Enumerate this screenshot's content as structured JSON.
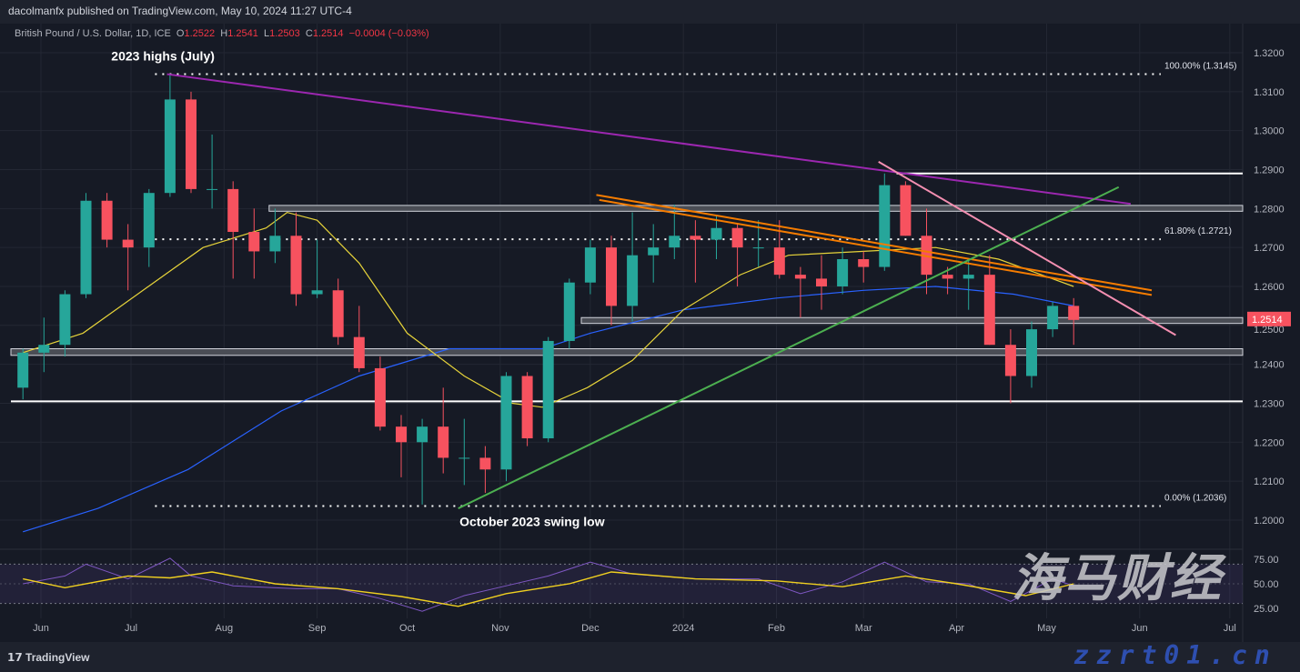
{
  "header": {
    "publisher": "dacolmanfx published on TradingView.com, May 10, 2024 11:27 UTC-4"
  },
  "legend": {
    "symbol": "British Pound / U.S. Dollar, 1D, ICE",
    "o_label": "O",
    "o": "1.2522",
    "h_label": "H",
    "h": "1.2541",
    "l_label": "L",
    "l": "1.2503",
    "c_label": "C",
    "c": "1.2514",
    "change": "−0.0004 (−0.03%)"
  },
  "footer": {
    "logo": "TradingView"
  },
  "watermark": {
    "cn": "海马财经",
    "url": "zzrt01.cn"
  },
  "colors": {
    "up": "#26a69a",
    "down": "#f7525f",
    "ma50": "#e6d33a",
    "ma200": "#2962ff",
    "trend_purple": "#9c27b0",
    "trend_orange": "#f57c00",
    "trend_green": "#4caf50",
    "trend_pink": "#f48fb1",
    "rsi": "#7e57c2",
    "rsi_ma": "#f0d020",
    "price_tag": "#f7525f"
  },
  "chart_data": {
    "type": "candlestick",
    "title": "British Pound / U.S. Dollar, 1D, ICE",
    "ylim": [
      1.195,
      1.325
    ],
    "y_ticks": [
      "1.3200",
      "1.3100",
      "1.3000",
      "1.2900",
      "1.2800",
      "1.2700",
      "1.2600",
      "1.2500",
      "1.2400",
      "1.2300",
      "1.2200",
      "1.2100",
      "1.2000"
    ],
    "x_ticks": [
      [
        "Jun",
        "2023-06-01"
      ],
      [
        "Jul",
        "2023-07-01"
      ],
      [
        "Aug",
        "2023-08-01"
      ],
      [
        "Sep",
        "2023-09-01"
      ],
      [
        "Oct",
        "2023-10-01"
      ],
      [
        "Nov",
        "2023-11-01"
      ],
      [
        "Dec",
        "2023-12-01"
      ],
      [
        "2024",
        "2024-01-01"
      ],
      [
        "Feb",
        "2024-02-01"
      ],
      [
        "Mar",
        "2024-03-01"
      ],
      [
        "Apr",
        "2024-04-01"
      ],
      [
        "May",
        "2024-05-01"
      ],
      [
        "Jun",
        "2024-06-01"
      ],
      [
        "Jul",
        "2024-07-01"
      ]
    ],
    "last_price": "1.2514",
    "candles": [
      [
        "2023-05-26",
        1.234,
        1.244,
        1.231,
        1.243
      ],
      [
        "2023-06-02",
        1.243,
        1.252,
        1.238,
        1.245
      ],
      [
        "2023-06-09",
        1.245,
        1.259,
        1.242,
        1.258
      ],
      [
        "2023-06-16",
        1.258,
        1.284,
        1.257,
        1.282
      ],
      [
        "2023-06-23",
        1.282,
        1.284,
        1.27,
        1.272
      ],
      [
        "2023-06-30",
        1.272,
        1.276,
        1.259,
        1.27
      ],
      [
        "2023-07-07",
        1.27,
        1.285,
        1.265,
        1.284
      ],
      [
        "2023-07-14",
        1.284,
        1.3145,
        1.283,
        1.308
      ],
      [
        "2023-07-21",
        1.308,
        1.31,
        1.284,
        1.285
      ],
      [
        "2023-07-28",
        1.285,
        1.299,
        1.28,
        1.285
      ],
      [
        "2023-08-04",
        1.285,
        1.287,
        1.262,
        1.274
      ],
      [
        "2023-08-11",
        1.274,
        1.28,
        1.262,
        1.269
      ],
      [
        "2023-08-18",
        1.269,
        1.28,
        1.266,
        1.273
      ],
      [
        "2023-08-25",
        1.273,
        1.279,
        1.255,
        1.258
      ],
      [
        "2023-09-01",
        1.258,
        1.272,
        1.257,
        1.259
      ],
      [
        "2023-09-08",
        1.259,
        1.262,
        1.245,
        1.247
      ],
      [
        "2023-09-15",
        1.247,
        1.255,
        1.238,
        1.239
      ],
      [
        "2023-09-22",
        1.239,
        1.242,
        1.223,
        1.224
      ],
      [
        "2023-09-29",
        1.224,
        1.227,
        1.211,
        1.22
      ],
      [
        "2023-10-06",
        1.22,
        1.226,
        1.204,
        1.224
      ],
      [
        "2023-10-13",
        1.224,
        1.234,
        1.212,
        1.216
      ],
      [
        "2023-10-20",
        1.216,
        1.226,
        1.209,
        1.216
      ],
      [
        "2023-10-27",
        1.216,
        1.219,
        1.207,
        1.213
      ],
      [
        "2023-11-03",
        1.213,
        1.238,
        1.21,
        1.237
      ],
      [
        "2023-11-10",
        1.237,
        1.238,
        1.219,
        1.221
      ],
      [
        "2023-11-17",
        1.221,
        1.247,
        1.22,
        1.246
      ],
      [
        "2023-11-24",
        1.246,
        1.262,
        1.244,
        1.261
      ],
      [
        "2023-12-01",
        1.261,
        1.272,
        1.258,
        1.27
      ],
      [
        "2023-12-08",
        1.27,
        1.273,
        1.25,
        1.255
      ],
      [
        "2023-12-15",
        1.255,
        1.279,
        1.251,
        1.268
      ],
      [
        "2023-12-22",
        1.268,
        1.276,
        1.261,
        1.27
      ],
      [
        "2023-12-29",
        1.27,
        1.281,
        1.267,
        1.273
      ],
      [
        "2024-01-05",
        1.273,
        1.277,
        1.261,
        1.272
      ],
      [
        "2024-01-12",
        1.272,
        1.278,
        1.267,
        1.275
      ],
      [
        "2024-01-19",
        1.275,
        1.276,
        1.26,
        1.27
      ],
      [
        "2024-01-26",
        1.27,
        1.277,
        1.265,
        1.27
      ],
      [
        "2024-02-02",
        1.27,
        1.277,
        1.262,
        1.263
      ],
      [
        "2024-02-09",
        1.263,
        1.265,
        1.252,
        1.262
      ],
      [
        "2024-02-16",
        1.262,
        1.268,
        1.254,
        1.26
      ],
      [
        "2024-02-23",
        1.26,
        1.27,
        1.258,
        1.267
      ],
      [
        "2024-03-01",
        1.267,
        1.269,
        1.261,
        1.265
      ],
      [
        "2024-03-08",
        1.265,
        1.289,
        1.264,
        1.286
      ],
      [
        "2024-03-15",
        1.286,
        1.287,
        1.273,
        1.273
      ],
      [
        "2024-03-22",
        1.273,
        1.28,
        1.258,
        1.263
      ],
      [
        "2024-03-29",
        1.263,
        1.265,
        1.258,
        1.262
      ],
      [
        "2024-04-05",
        1.262,
        1.267,
        1.254,
        1.263
      ],
      [
        "2024-04-12",
        1.263,
        1.268,
        1.245,
        1.245
      ],
      [
        "2024-04-19",
        1.245,
        1.249,
        1.23,
        1.237
      ],
      [
        "2024-04-26",
        1.237,
        1.251,
        1.234,
        1.249
      ],
      [
        "2024-05-03",
        1.249,
        1.256,
        1.247,
        1.255
      ],
      [
        "2024-05-10",
        1.255,
        1.257,
        1.245,
        1.2514
      ]
    ],
    "ma50": [
      [
        "2023-05-26",
        1.243
      ],
      [
        "2023-06-15",
        1.248
      ],
      [
        "2023-07-05",
        1.259
      ],
      [
        "2023-07-25",
        1.27
      ],
      [
        "2023-08-15",
        1.275
      ],
      [
        "2023-08-22",
        1.279
      ],
      [
        "2023-09-01",
        1.277
      ],
      [
        "2023-09-15",
        1.266
      ],
      [
        "2023-10-01",
        1.248
      ],
      [
        "2023-10-20",
        1.237
      ],
      [
        "2023-11-05",
        1.23
      ],
      [
        "2023-11-15",
        1.229
      ],
      [
        "2023-11-30",
        1.234
      ],
      [
        "2023-12-15",
        1.241
      ],
      [
        "2024-01-01",
        1.254
      ],
      [
        "2024-01-20",
        1.263
      ],
      [
        "2024-02-05",
        1.268
      ],
      [
        "2024-03-01",
        1.269
      ],
      [
        "2024-03-25",
        1.27
      ],
      [
        "2024-04-15",
        1.267
      ],
      [
        "2024-05-10",
        1.26
      ]
    ],
    "ma200": [
      [
        "2023-05-26",
        1.197
      ],
      [
        "2023-06-20",
        1.203
      ],
      [
        "2023-07-20",
        1.213
      ],
      [
        "2023-08-20",
        1.228
      ],
      [
        "2023-09-15",
        1.237
      ],
      [
        "2023-10-15",
        1.244
      ],
      [
        "2023-11-15",
        1.244
      ],
      [
        "2023-12-01",
        1.248
      ],
      [
        "2024-01-01",
        1.254
      ],
      [
        "2024-02-01",
        1.257
      ],
      [
        "2024-03-01",
        1.259
      ],
      [
        "2024-03-25",
        1.26
      ],
      [
        "2024-04-20",
        1.258
      ],
      [
        "2024-05-10",
        1.255
      ]
    ],
    "levels": [
      {
        "label": "100.00% (1.3145)",
        "price": 1.3145,
        "style": "dotted",
        "from": "2023-07-09",
        "to": "2024-06-08"
      },
      {
        "label": "61.80% (1.2721)",
        "price": 1.2721,
        "style": "dotted",
        "from": "2023-07-09",
        "to": "2024-06-08"
      },
      {
        "label": "0.00% (1.2036)",
        "price": 1.2036,
        "style": "dotted",
        "from": "2023-07-09",
        "to": "2024-06-08"
      },
      {
        "label": "",
        "price": 1.289,
        "style": "solid",
        "from": "2024-03-12",
        "to": "2024-07-10"
      },
      {
        "label": "",
        "price": 1.2305,
        "style": "solid",
        "from": "2023-05-22",
        "to": "2024-07-10"
      }
    ],
    "zones": [
      {
        "top": 1.2808,
        "bottom": 1.2793,
        "from": "2023-08-16"
      },
      {
        "top": 1.252,
        "bottom": 1.2505,
        "from": "2023-11-28"
      },
      {
        "top": 1.244,
        "bottom": 1.2423,
        "from": "2023-05-22"
      }
    ],
    "trendlines": [
      {
        "color": "trend_purple",
        "p1": [
          "2023-07-13",
          1.3145
        ],
        "p2": [
          "2024-05-29",
          1.2812
        ]
      },
      {
        "color": "trend_orange",
        "p1": [
          "2023-12-03",
          1.2835
        ],
        "p2": [
          "2024-06-05",
          1.259
        ]
      },
      {
        "color": "trend_orange",
        "p1": [
          "2023-12-04",
          1.2822
        ],
        "p2": [
          "2024-06-05",
          1.2578
        ]
      },
      {
        "color": "trend_green",
        "p1": [
          "2023-10-18",
          1.203
        ],
        "p2": [
          "2024-05-25",
          1.2855
        ]
      },
      {
        "color": "trend_pink",
        "p1": [
          "2024-03-06",
          1.292
        ],
        "p2": [
          "2024-06-13",
          1.2475
        ]
      }
    ],
    "annotations": [
      {
        "text": "2023 highs (July)",
        "date": "2023-07-02",
        "price": 1.318
      },
      {
        "text": "October 2023 swing low",
        "date": "2023-10-26",
        "price": 1.1985
      }
    ],
    "rsi": {
      "y_ticks": [
        "75.00",
        "50.00",
        "25.00"
      ],
      "bands": [
        70,
        30
      ],
      "values": [
        [
          "2023-05-26",
          50
        ],
        [
          "2023-06-09",
          58
        ],
        [
          "2023-06-16",
          70
        ],
        [
          "2023-06-30",
          55
        ],
        [
          "2023-07-14",
          76
        ],
        [
          "2023-07-21",
          58
        ],
        [
          "2023-08-04",
          48
        ],
        [
          "2023-08-25",
          45
        ],
        [
          "2023-09-08",
          45
        ],
        [
          "2023-09-22",
          35
        ],
        [
          "2023-10-06",
          22
        ],
        [
          "2023-10-20",
          38
        ],
        [
          "2023-11-03",
          48
        ],
        [
          "2023-11-17",
          58
        ],
        [
          "2023-12-01",
          72
        ],
        [
          "2023-12-15",
          60
        ],
        [
          "2024-01-05",
          55
        ],
        [
          "2024-01-26",
          55
        ],
        [
          "2024-02-09",
          40
        ],
        [
          "2024-02-23",
          52
        ],
        [
          "2024-03-08",
          72
        ],
        [
          "2024-03-22",
          52
        ],
        [
          "2024-04-05",
          50
        ],
        [
          "2024-04-19",
          32
        ],
        [
          "2024-05-03",
          55
        ],
        [
          "2024-05-10",
          48
        ]
      ],
      "ma": [
        [
          "2023-05-26",
          55
        ],
        [
          "2023-06-09",
          46
        ],
        [
          "2023-06-30",
          58
        ],
        [
          "2023-07-14",
          56
        ],
        [
          "2023-07-28",
          62
        ],
        [
          "2023-08-18",
          50
        ],
        [
          "2023-09-08",
          45
        ],
        [
          "2023-09-29",
          37
        ],
        [
          "2023-10-18",
          27
        ],
        [
          "2023-11-03",
          40
        ],
        [
          "2023-11-24",
          50
        ],
        [
          "2023-12-08",
          62
        ],
        [
          "2024-01-05",
          55
        ],
        [
          "2024-02-01",
          53
        ],
        [
          "2024-02-23",
          47
        ],
        [
          "2024-03-15",
          58
        ],
        [
          "2024-04-01",
          50
        ],
        [
          "2024-04-24",
          38
        ],
        [
          "2024-05-10",
          50
        ]
      ]
    }
  }
}
